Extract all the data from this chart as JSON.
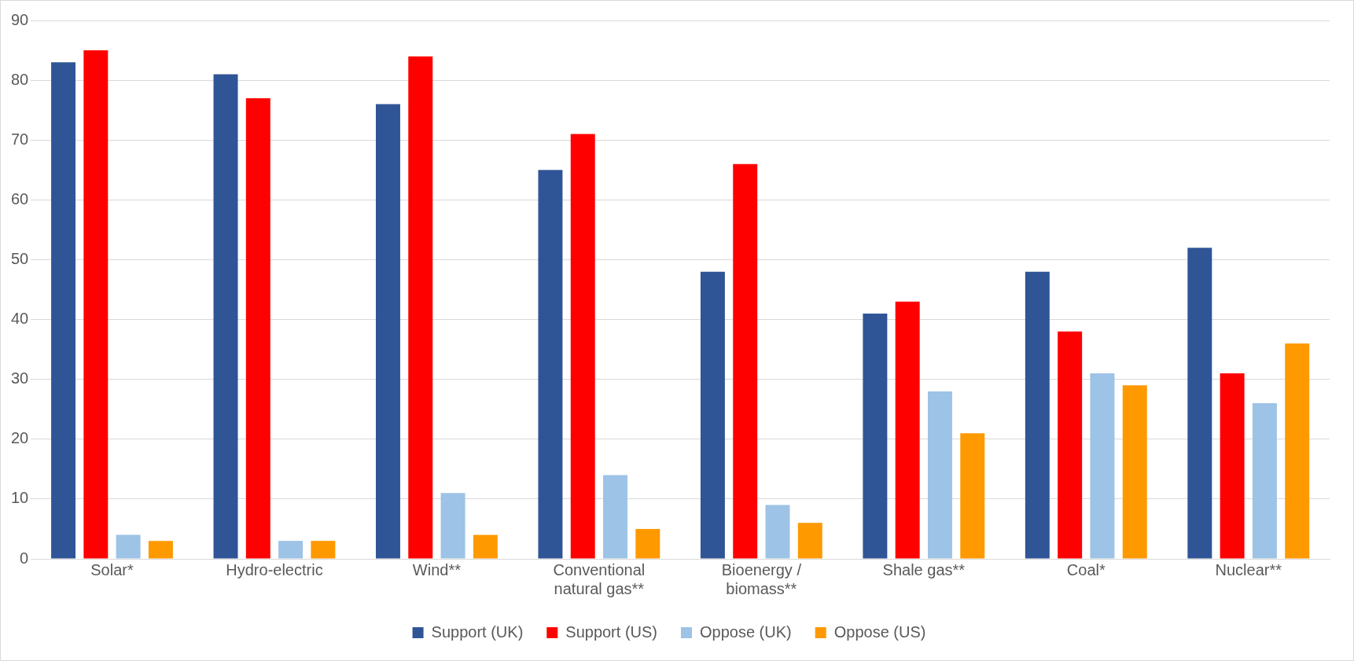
{
  "chart_data": {
    "type": "bar",
    "categories": [
      "Solar*",
      "Hydro-electric",
      "Wind**",
      "Conventional natural gas**",
      "Bioenergy / biomass**",
      "Shale gas**",
      "Coal*",
      "Nuclear**"
    ],
    "series": [
      {
        "name": "Support (UK)",
        "color": "#2f5597",
        "values": [
          83,
          81,
          76,
          65,
          48,
          41,
          48,
          52
        ]
      },
      {
        "name": "Support (US)",
        "color": "#ff0000",
        "values": [
          85,
          77,
          84,
          71,
          66,
          43,
          38,
          31
        ]
      },
      {
        "name": "Oppose (UK)",
        "color": "#9dc3e6",
        "values": [
          4,
          3,
          11,
          14,
          9,
          28,
          31,
          26
        ]
      },
      {
        "name": "Oppose (US)",
        "color": "#ff9900",
        "values": [
          3,
          3,
          4,
          5,
          6,
          21,
          29,
          36
        ]
      }
    ],
    "ylim": [
      0,
      90
    ],
    "yticks": [
      0,
      10,
      20,
      30,
      40,
      50,
      60,
      70,
      80,
      90
    ],
    "grid": "y",
    "legend": "bottom"
  }
}
